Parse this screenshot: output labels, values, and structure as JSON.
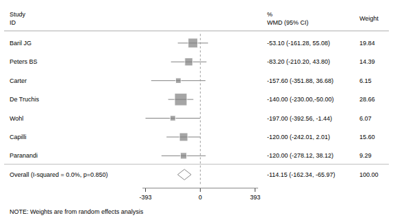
{
  "chart_data": {
    "type": "forest",
    "categories": [
      "Baril JG",
      "Peters BS",
      "Carter",
      "De Truchis",
      "Wohl",
      "Capilli",
      "Paranandi"
    ],
    "values": [
      -53.1,
      -83.2,
      -157.6,
      -140.0,
      -197.0,
      -120.0,
      -120.0
    ],
    "value_labels": [
      "-53.10 (-161.28, 55.08)",
      "-83.20 (-210.20, 43.80)",
      "-157.60 (-351.88, 36.68)",
      "-140.00 (-230.00,-50.00)",
      "-197.00 (-392.56, -1.44)",
      "-120.00 (-242.01, 2.01)",
      "-120.00 (-278.12, 38.12)"
    ],
    "ci_lower": [
      -161.28,
      -210.2,
      -351.88,
      -230.0,
      -392.56,
      -242.01,
      -278.12
    ],
    "ci_upper": [
      55.08,
      43.8,
      36.68,
      -50.0,
      -1.44,
      2.01,
      38.12
    ],
    "weights": [
      19.84,
      14.39,
      6.15,
      28.66,
      6.07,
      15.6,
      9.29
    ],
    "weight_labels": [
      "19.84",
      "14.39",
      "6.15",
      "28.66",
      "6.07",
      "15.60",
      "9.29"
    ],
    "color": "#808080",
    "marker": "square",
    "overall": {
      "label": "Overall (I-squared = 0.0%, p=0.850)",
      "value": -114.15,
      "ci_lower": -162.34,
      "ci_upper": -65.97,
      "value_label": "-114.15 (-162.34, -65.97)",
      "weight_label": "100.00",
      "color": "#888888"
    },
    "header_study": [
      "Study",
      "ID"
    ],
    "header_wmd": [
      "%",
      "WMD (95% CI)"
    ],
    "header_weight": [
      "Weight"
    ],
    "note": "NOTE: Weights are from random effects analysis",
    "reference_line": 0,
    "xlim": [
      -413,
      413
    ],
    "xticks": [
      -393,
      0,
      393
    ],
    "grid": false
  }
}
